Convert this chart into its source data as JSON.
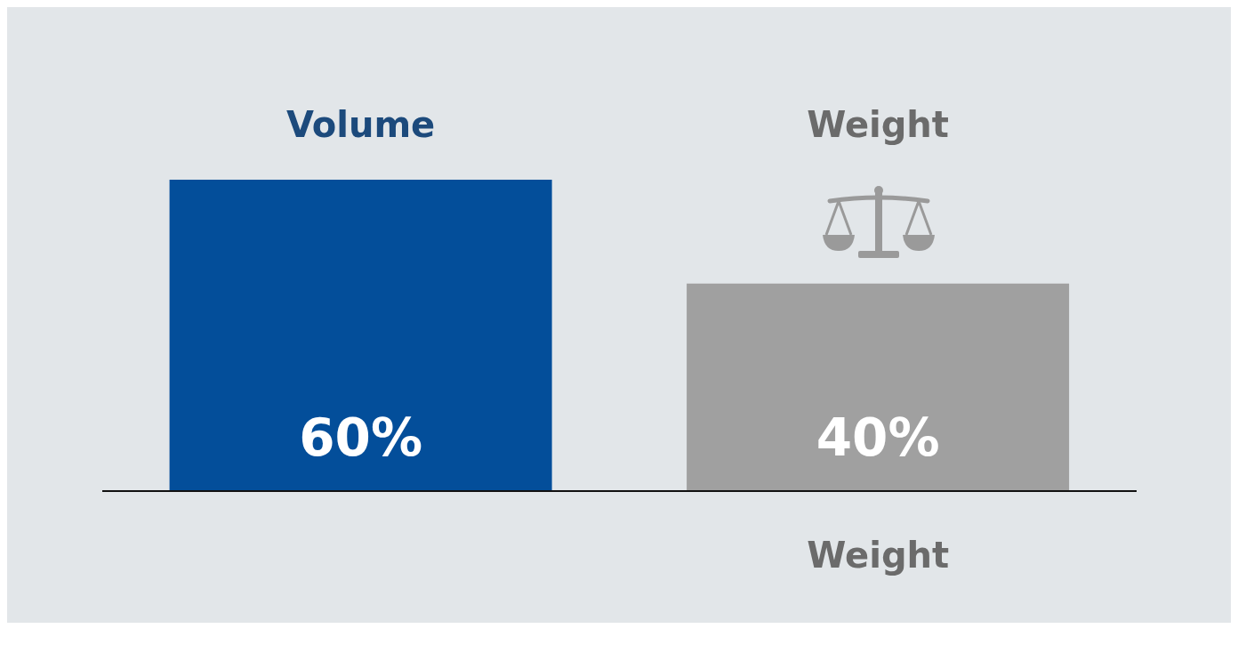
{
  "chart_data": {
    "type": "bar",
    "categories": [
      null,
      "Weight"
    ],
    "values": [
      60,
      40
    ],
    "value_labels": [
      "60%",
      "40%"
    ],
    "colors": [
      "#034e9a",
      "#a0a0a0"
    ],
    "annotations": [
      "Volume",
      "Weight"
    ]
  }
}
